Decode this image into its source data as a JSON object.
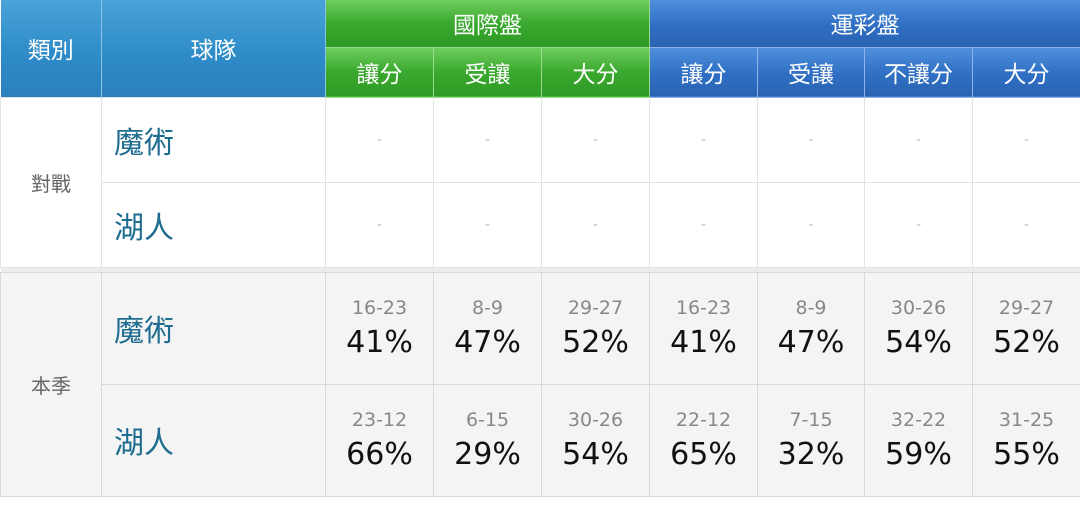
{
  "header": {
    "category": "類別",
    "team": "球隊",
    "intl": "國際盤",
    "sports_lottery": "運彩盤",
    "intl_cols": [
      "讓分",
      "受讓",
      "大分"
    ],
    "lottery_cols": [
      "讓分",
      "受讓",
      "不讓分",
      "大分"
    ]
  },
  "colors": {
    "blue": "#2f8cc8",
    "green": "#3aa82e",
    "lottery_blue": "#2f6fc3",
    "team_text": "#1e6c90"
  },
  "sections": [
    {
      "category": "對戰",
      "rows": [
        {
          "team": "魔術",
          "cells": [
            {
              "v": "-"
            },
            {
              "v": "-"
            },
            {
              "v": "-"
            },
            {
              "v": "-"
            },
            {
              "v": "-"
            },
            {
              "v": "-"
            },
            {
              "v": "-"
            }
          ]
        },
        {
          "team": "湖人",
          "cells": [
            {
              "v": "-"
            },
            {
              "v": "-"
            },
            {
              "v": "-"
            },
            {
              "v": "-"
            },
            {
              "v": "-"
            },
            {
              "v": "-"
            },
            {
              "v": "-"
            }
          ]
        }
      ]
    },
    {
      "category": "本季",
      "rows": [
        {
          "team": "魔術",
          "cells": [
            {
              "r": "16-23",
              "p": "41%"
            },
            {
              "r": "8-9",
              "p": "47%"
            },
            {
              "r": "29-27",
              "p": "52%"
            },
            {
              "r": "16-23",
              "p": "41%"
            },
            {
              "r": "8-9",
              "p": "47%"
            },
            {
              "r": "30-26",
              "p": "54%"
            },
            {
              "r": "29-27",
              "p": "52%"
            }
          ]
        },
        {
          "team": "湖人",
          "cells": [
            {
              "r": "23-12",
              "p": "66%"
            },
            {
              "r": "6-15",
              "p": "29%"
            },
            {
              "r": "30-26",
              "p": "54%"
            },
            {
              "r": "22-12",
              "p": "65%"
            },
            {
              "r": "7-15",
              "p": "32%"
            },
            {
              "r": "32-22",
              "p": "59%"
            },
            {
              "r": "31-25",
              "p": "55%"
            }
          ]
        }
      ]
    }
  ]
}
